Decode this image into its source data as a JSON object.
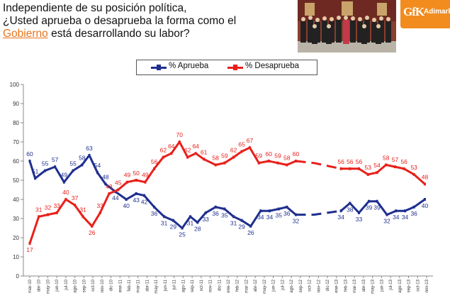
{
  "header": {
    "question_line1": "Independiente de su posición política,",
    "question_line2": "¿Usted aprueba o desaprueba la forma como el",
    "question_highlight": "Gobierno",
    "question_line3_rest": " está desarrollando su labor?"
  },
  "logo": {
    "gfk": "GfK",
    "adimark": "Adimark"
  },
  "colors": {
    "aprueba": "#1f2f8f",
    "desaprueba": "#e8201b",
    "highlight": "#e8731c",
    "logo_bg": "#f28c1e"
  },
  "chart_data": {
    "type": "line",
    "ylim": [
      0,
      100
    ],
    "yticks": [
      0,
      10,
      20,
      30,
      40,
      50,
      60,
      70,
      80,
      90,
      100
    ],
    "legend_position": "top-center",
    "grid": false,
    "categories": [
      "mar-10",
      "abr-10",
      "may-10",
      "jun-10",
      "jul-10",
      "ago-10",
      "sep-10",
      "oct-10",
      "nov-10",
      "dic-10",
      "ene-11",
      "feb-11",
      "mar-11",
      "abr-11",
      "may-11",
      "jun-11",
      "jul-11",
      "ago-11",
      "sep-11",
      "oct-11",
      "nov-11",
      "dic-11",
      "ene-12",
      "feb-12",
      "mar-12",
      "abr-12",
      "may-12",
      "jun-12",
      "jul-12",
      "ago-12",
      "sep-12",
      "oct-12",
      "nov-12",
      "dic-12",
      "ene-13",
      "feb-13",
      "mar-13",
      "abr-13",
      "may-13",
      "jun-13",
      "jul-13",
      "ago-13",
      "sep-13",
      "oct-13",
      "nov-13"
    ],
    "series": [
      {
        "name": "% Aprueba",
        "color": "#1f2f8f",
        "points": [
          {
            "x": 0,
            "y": 60,
            "label": "60"
          },
          {
            "x": 0.6,
            "y": 51,
            "label": "51"
          },
          {
            "x": 1.7,
            "y": 55,
            "label": "55"
          },
          {
            "x": 2.8,
            "y": 57,
            "label": "57"
          },
          {
            "x": 3.8,
            "y": 49,
            "label": "49"
          },
          {
            "x": 4.8,
            "y": 55,
            "label": "55"
          },
          {
            "x": 5.8,
            "y": 58,
            "label": "58"
          },
          {
            "x": 6.6,
            "y": 63,
            "label": "63"
          },
          {
            "x": 7.5,
            "y": 54,
            "label": "54"
          },
          {
            "x": 8.4,
            "y": 48,
            "label": "48"
          },
          {
            "x": 9.5,
            "y": 44,
            "label": "44"
          },
          {
            "x": 10.7,
            "y": 40,
            "label": "40"
          },
          {
            "x": 11.8,
            "y": 43,
            "label": "43"
          },
          {
            "x": 12.7,
            "y": 42,
            "label": "42"
          },
          {
            "x": 13.8,
            "y": 36,
            "label": "36"
          },
          {
            "x": 14.9,
            "y": 31,
            "label": "31"
          },
          {
            "x": 15.9,
            "y": 29,
            "label": "29"
          },
          {
            "x": 16.9,
            "y": 25,
            "label": "25"
          },
          {
            "x": 17.8,
            "y": 31,
            "label": "31"
          },
          {
            "x": 18.6,
            "y": 28,
            "label": "28"
          },
          {
            "x": 19.5,
            "y": 33,
            "label": "33"
          },
          {
            "x": 20.6,
            "y": 36,
            "label": "36"
          },
          {
            "x": 21.6,
            "y": 35,
            "label": "35"
          },
          {
            "x": 22.6,
            "y": 31,
            "label": "31"
          },
          {
            "x": 23.5,
            "y": 29,
            "label": "29"
          },
          {
            "x": 24.5,
            "y": 26,
            "label": "26"
          },
          {
            "x": 25.6,
            "y": 34,
            "label": "34"
          },
          {
            "x": 26.6,
            "y": 34,
            "label": "34"
          },
          {
            "x": 27.6,
            "y": 35,
            "label": "35"
          },
          {
            "x": 28.5,
            "y": 36,
            "label": "36"
          },
          {
            "x": 29.5,
            "y": 32,
            "label": "32"
          },
          {
            "x": 31.5,
            "y": 32,
            "label": null
          },
          {
            "x": 34.5,
            "y": 34,
            "label": "34"
          },
          {
            "x": 35.5,
            "y": 38,
            "label": "38"
          },
          {
            "x": 36.5,
            "y": 33,
            "label": "33"
          },
          {
            "x": 37.6,
            "y": 39,
            "label": "39"
          },
          {
            "x": 38.5,
            "y": 39,
            "label": "39"
          },
          {
            "x": 39.6,
            "y": 32,
            "label": "32"
          },
          {
            "x": 40.6,
            "y": 34,
            "label": "34"
          },
          {
            "x": 41.6,
            "y": 34,
            "label": "34"
          },
          {
            "x": 42.6,
            "y": 36,
            "label": "36"
          },
          {
            "x": 43.8,
            "y": 40,
            "label": "40"
          }
        ],
        "solid_segments": [
          [
            0,
            30
          ],
          [
            32,
            41
          ]
        ],
        "dashed_segments": [
          [
            30,
            32
          ]
        ]
      },
      {
        "name": "% Desaprueba",
        "color": "#e8201b",
        "points": [
          {
            "x": 0,
            "y": 17,
            "label": "17"
          },
          {
            "x": 1.0,
            "y": 31,
            "label": "31"
          },
          {
            "x": 2.0,
            "y": 32,
            "label": "32"
          },
          {
            "x": 3.0,
            "y": 33,
            "label": "33"
          },
          {
            "x": 4.0,
            "y": 40,
            "label": "40"
          },
          {
            "x": 5.0,
            "y": 37,
            "label": "37"
          },
          {
            "x": 5.9,
            "y": 31,
            "label": "31"
          },
          {
            "x": 6.9,
            "y": 26,
            "label": "26"
          },
          {
            "x": 7.8,
            "y": 33,
            "label": "33"
          },
          {
            "x": 8.8,
            "y": 43,
            "label": "43"
          },
          {
            "x": 9.8,
            "y": 45,
            "label": "45"
          },
          {
            "x": 10.8,
            "y": 49,
            "label": "49"
          },
          {
            "x": 11.8,
            "y": 50,
            "label": "50"
          },
          {
            "x": 12.8,
            "y": 49,
            "label": "49"
          },
          {
            "x": 13.8,
            "y": 56,
            "label": "56"
          },
          {
            "x": 14.8,
            "y": 62,
            "label": "62"
          },
          {
            "x": 15.7,
            "y": 64,
            "label": "64"
          },
          {
            "x": 16.6,
            "y": 70,
            "label": "70"
          },
          {
            "x": 17.5,
            "y": 62,
            "label": "62"
          },
          {
            "x": 18.4,
            "y": 64,
            "label": "64"
          },
          {
            "x": 19.3,
            "y": 61,
            "label": "61"
          },
          {
            "x": 20.6,
            "y": 58,
            "label": "58"
          },
          {
            "x": 21.6,
            "y": 59,
            "label": "59"
          },
          {
            "x": 22.6,
            "y": 62,
            "label": "62"
          },
          {
            "x": 23.5,
            "y": 65,
            "label": "65"
          },
          {
            "x": 24.4,
            "y": 67,
            "label": "67"
          },
          {
            "x": 25.4,
            "y": 59,
            "label": "59"
          },
          {
            "x": 26.5,
            "y": 60,
            "label": "60"
          },
          {
            "x": 27.5,
            "y": 59,
            "label": "59"
          },
          {
            "x": 28.5,
            "y": 58,
            "label": "58"
          },
          {
            "x": 29.5,
            "y": 60,
            "label": "60"
          },
          {
            "x": 31.5,
            "y": 59,
            "label": null
          },
          {
            "x": 34.5,
            "y": 56,
            "label": "56"
          },
          {
            "x": 35.5,
            "y": 56,
            "label": "56"
          },
          {
            "x": 36.5,
            "y": 56,
            "label": "56"
          },
          {
            "x": 37.5,
            "y": 53,
            "label": "53"
          },
          {
            "x": 38.5,
            "y": 54,
            "label": "54"
          },
          {
            "x": 39.5,
            "y": 58,
            "label": "58"
          },
          {
            "x": 40.5,
            "y": 57,
            "label": "57"
          },
          {
            "x": 41.5,
            "y": 56,
            "label": "56"
          },
          {
            "x": 42.6,
            "y": 53,
            "label": "53"
          },
          {
            "x": 43.8,
            "y": 48,
            "label": "48"
          }
        ],
        "solid_segments": [
          [
            0,
            30
          ],
          [
            32,
            41
          ]
        ],
        "dashed_segments": [
          [
            30,
            32
          ]
        ]
      }
    ]
  }
}
